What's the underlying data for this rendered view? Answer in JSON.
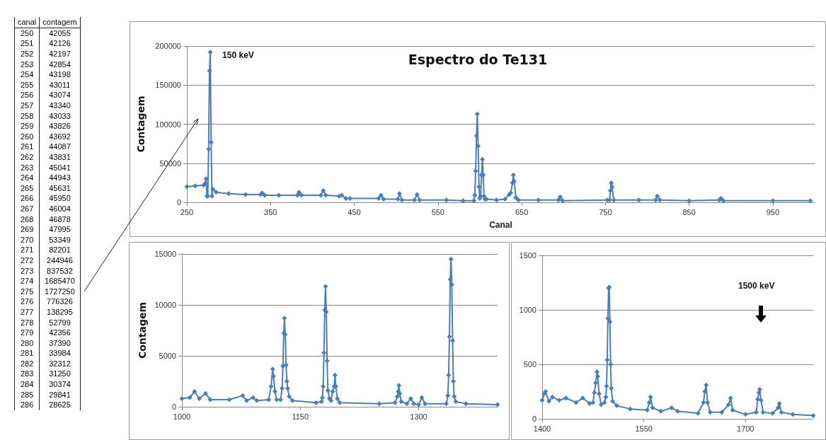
{
  "chart_data": [
    {
      "type": "heatmap",
      "ylabel": "canal",
      "categories": [
        "contagem"
      ],
      "data_labels": true,
      "y_categories": [
        "250",
        "251",
        "252",
        "253",
        "254",
        "255",
        "256",
        "257",
        "258",
        "259",
        "260",
        "261",
        "262",
        "263",
        "264",
        "265",
        "266",
        "267",
        "268",
        "269",
        "270",
        "271",
        "272",
        "273",
        "274",
        "275",
        "276",
        "277",
        "278",
        "279",
        "280",
        "281",
        "282",
        "283",
        "284",
        "285",
        "286"
      ],
      "cells": [
        [
          42055
        ],
        [
          42126
        ],
        [
          42197
        ],
        [
          42854
        ],
        [
          43198
        ],
        [
          43011
        ],
        [
          43074
        ],
        [
          43340
        ],
        [
          43033
        ],
        [
          43826
        ],
        [
          43692
        ],
        [
          44087
        ],
        [
          43831
        ],
        [
          45041
        ],
        [
          44943
        ],
        [
          45631
        ],
        [
          45950
        ],
        [
          46004
        ],
        [
          46878
        ],
        [
          47995
        ],
        [
          53349
        ],
        [
          82201
        ],
        [
          244946
        ],
        [
          837532
        ],
        [
          1685470
        ],
        [
          1727250
        ],
        [
          776326
        ],
        [
          138295
        ],
        [
          52799
        ],
        [
          42356
        ],
        [
          37390
        ],
        [
          33984
        ],
        [
          32312
        ],
        [
          31250
        ],
        [
          30374
        ],
        [
          29841
        ],
        [
          28625
        ]
      ]
    },
    {
      "type": "line",
      "title": "Espectro do Te131",
      "xlabel": "Canal",
      "ylabel": "Contagem",
      "marker": "diamond",
      "line_style": "solid",
      "grid": "y",
      "xlim": [
        250,
        1000
      ],
      "xticks": [
        250,
        350,
        450,
        550,
        650,
        750,
        850,
        950
      ],
      "ylim": [
        0,
        200000
      ],
      "yticks": [
        0,
        50000,
        100000,
        150000,
        200000
      ],
      "annotations": [
        {
          "text": "150 keV",
          "x": 278,
          "y": 192000
        }
      ],
      "series": [
        {
          "color": "#4a7ebb",
          "x": [
            250,
            260,
            270,
            272,
            273,
            274,
            275,
            276,
            277,
            278,
            279,
            280,
            281,
            285,
            300,
            320,
            338,
            340,
            343,
            360,
            382,
            384,
            387,
            410,
            413,
            416,
            432,
            435,
            440,
            445,
            479,
            482,
            485,
            502,
            504,
            507,
            522,
            525,
            528,
            560,
            580,
            593,
            594,
            595,
            596,
            597,
            598,
            599,
            600,
            601,
            602,
            603,
            604,
            605,
            606,
            608,
            620,
            630,
            635,
            637,
            639,
            640,
            641,
            643,
            646,
            670,
            694,
            696,
            699,
            752,
            755,
            756,
            757,
            758,
            760,
            790,
            810,
            812,
            815,
            850,
            886,
            888,
            891,
            950,
            995
          ],
          "values": [
            20000,
            21000,
            22000,
            24000,
            30000,
            8000,
            8000,
            68000,
            168000,
            192000,
            77000,
            8000,
            17000,
            13000,
            11000,
            10000,
            10000,
            12000,
            9000,
            9000,
            9000,
            13000,
            9000,
            9000,
            15000,
            9000,
            8000,
            9000,
            5000,
            5000,
            5000,
            9000,
            4000,
            4000,
            11000,
            3000,
            3000,
            10000,
            3000,
            3000,
            2000,
            2000,
            9000,
            40000,
            85000,
            113000,
            72000,
            20000,
            5000,
            8000,
            35000,
            55000,
            35000,
            8000,
            4000,
            4000,
            3000,
            4000,
            10000,
            12000,
            25000,
            35000,
            27000,
            6000,
            3000,
            3000,
            3000,
            7000,
            2000,
            3000,
            3000,
            15000,
            25000,
            20000,
            3000,
            3000,
            3000,
            8000,
            3000,
            2000,
            3000,
            5000,
            2000,
            2000,
            2000
          ]
        }
      ]
    },
    {
      "type": "line",
      "ylabel": "Contagem",
      "marker": "diamond",
      "line_style": "solid",
      "grid": "y",
      "xlim": [
        1000,
        1400
      ],
      "xticks": [
        1000,
        1150,
        1300
      ],
      "ylim": [
        0,
        15000
      ],
      "yticks": [
        0,
        5000,
        10000,
        15000
      ],
      "series": [
        {
          "color": "#4a7ebb",
          "x": [
            1000,
            1010,
            1016,
            1022,
            1030,
            1036,
            1060,
            1077,
            1082,
            1090,
            1095,
            1110,
            1113,
            1115,
            1116,
            1118,
            1120,
            1125,
            1127,
            1128,
            1129,
            1130,
            1131,
            1132,
            1133,
            1134,
            1136,
            1140,
            1170,
            1177,
            1178,
            1179,
            1180,
            1181,
            1182,
            1183,
            1184,
            1185,
            1187,
            1189,
            1191,
            1193,
            1194,
            1195,
            1197,
            1200,
            1250,
            1270,
            1273,
            1274,
            1275,
            1276,
            1278,
            1285,
            1290,
            1294,
            1300,
            1304,
            1308,
            1335,
            1337,
            1338,
            1339,
            1340,
            1341,
            1342,
            1343,
            1344,
            1345,
            1347,
            1360,
            1400
          ],
          "values": [
            800,
            900,
            1500,
            800,
            1300,
            700,
            700,
            1100,
            600,
            900,
            600,
            700,
            2000,
            3700,
            3000,
            1500,
            700,
            700,
            1800,
            4000,
            7200,
            8700,
            7100,
            4100,
            2500,
            1800,
            1000,
            600,
            400,
            500,
            900,
            2000,
            5300,
            9500,
            11800,
            9300,
            4500,
            1600,
            800,
            600,
            1500,
            2000,
            3100,
            2000,
            800,
            400,
            300,
            400,
            1000,
            1500,
            2100,
            1300,
            500,
            300,
            800,
            300,
            200,
            900,
            300,
            300,
            1100,
            3100,
            6900,
            12500,
            14500,
            12000,
            6500,
            2500,
            1000,
            500,
            300,
            200
          ]
        }
      ]
    },
    {
      "type": "line",
      "marker": "diamond",
      "line_style": "solid",
      "grid": "y",
      "xlim": [
        1400,
        1800
      ],
      "xticks": [
        1400,
        1550,
        1700
      ],
      "ylim": [
        0,
        1500
      ],
      "yticks": [
        0,
        500,
        1000,
        1500
      ],
      "annotations": [
        "1500 keV"
      ],
      "series": [
        {
          "color": "#4a7ebb",
          "x": [
            1400,
            1403,
            1405,
            1410,
            1415,
            1425,
            1435,
            1450,
            1460,
            1470,
            1475,
            1477,
            1479,
            1481,
            1482,
            1484,
            1487,
            1492,
            1494,
            1495,
            1496,
            1497,
            1498,
            1499,
            1500,
            1501,
            1502,
            1504,
            1510,
            1530,
            1555,
            1558,
            1560,
            1563,
            1575,
            1591,
            1600,
            1630,
            1638,
            1640,
            1642,
            1644,
            1648,
            1665,
            1675,
            1678,
            1681,
            1700,
            1716,
            1718,
            1720,
            1721,
            1723,
            1726,
            1740,
            1748,
            1750,
            1753,
            1770,
            1800
          ],
          "values": [
            170,
            230,
            250,
            160,
            200,
            170,
            190,
            150,
            190,
            140,
            150,
            240,
            330,
            430,
            390,
            230,
            130,
            150,
            200,
            300,
            540,
            920,
            1200,
            1210,
            890,
            500,
            280,
            160,
            120,
            90,
            80,
            150,
            200,
            100,
            70,
            100,
            70,
            50,
            150,
            250,
            310,
            150,
            60,
            60,
            130,
            190,
            80,
            40,
            60,
            180,
            240,
            270,
            170,
            60,
            50,
            100,
            140,
            60,
            40,
            30
          ]
        }
      ]
    }
  ]
}
